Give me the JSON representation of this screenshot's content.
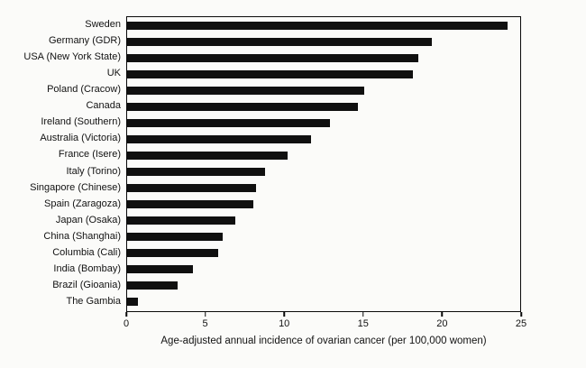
{
  "chart_data": {
    "type": "bar",
    "orientation": "horizontal",
    "title": "",
    "xlabel": "Age-adjusted annual incidence of ovarian cancer (per 100,000 women)",
    "ylabel": "",
    "xlim": [
      0,
      25
    ],
    "xticks": [
      0,
      5,
      10,
      15,
      20,
      25
    ],
    "grid": false,
    "legend": false,
    "bar_color": "#101010",
    "categories": [
      "Sweden",
      "Germany (GDR)",
      "USA (New York State)",
      "UK",
      "Poland (Cracow)",
      "Canada",
      "Ireland (Southern)",
      "Australia (Victoria)",
      "France (Isere)",
      "Italy (Torino)",
      "Singapore (Chinese)",
      "Spain (Zaragoza)",
      "Japan (Osaka)",
      "China (Shanghai)",
      "Columbia (Cali)",
      "India (Bombay)",
      "Brazil (Gioania)",
      "The Gambia"
    ],
    "values": [
      24.2,
      19.4,
      18.5,
      18.2,
      15.1,
      14.7,
      12.9,
      11.7,
      10.2,
      8.8,
      8.2,
      8.0,
      6.9,
      6.1,
      5.8,
      4.2,
      3.2,
      0.7
    ]
  }
}
